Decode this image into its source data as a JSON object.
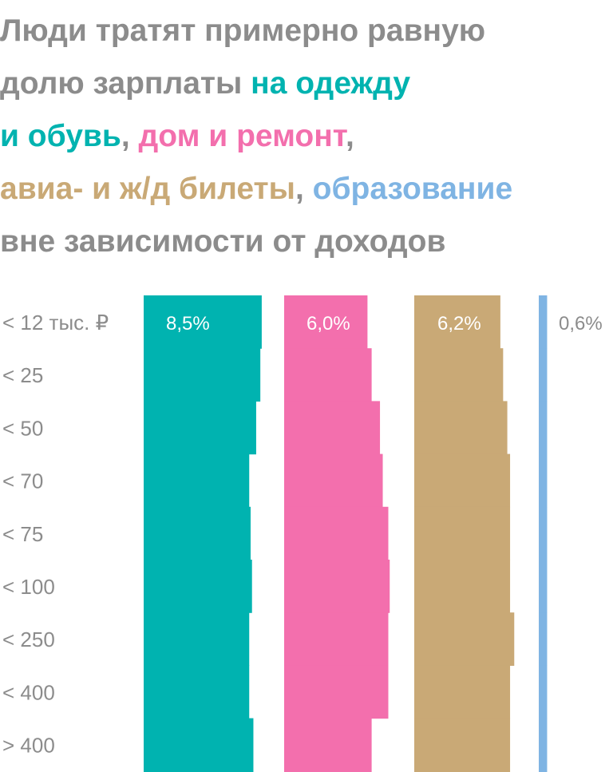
{
  "title": {
    "part1": "Люди тратят примерно равную",
    "part2": "долю зарплаты ",
    "clothes": "на одежду",
    "br_clothes": "и обувь",
    "comma1": ", ",
    "home": "дом и ремонт",
    "comma2": ",",
    "travel": "авиа- и ж/д билеты",
    "comma3": ", ",
    "education": "образование",
    "part3": "вне зависимости от доходов"
  },
  "colors": {
    "clothes": "#00b3b0",
    "home": "#f36fad",
    "travel": "#c9a976",
    "education": "#7fb4e3",
    "text": "#8c8c8c"
  },
  "chart_data": {
    "type": "bar",
    "orientation": "horizontal-stepped",
    "categories": [
      "< 12 тыс. ₽",
      "< 25",
      "< 50",
      "< 70",
      "< 75",
      "< 100",
      "< 250",
      "< 400",
      "> 400"
    ],
    "series": [
      {
        "name": "на одежду и обувь",
        "label": "8,5%",
        "values": [
          8.5,
          8.4,
          8.1,
          7.6,
          7.7,
          7.8,
          7.6,
          7.6,
          7.9
        ],
        "color_key": "clothes"
      },
      {
        "name": "дом и ремонт",
        "label": "6,0%",
        "values": [
          6.0,
          6.3,
          6.9,
          7.1,
          7.5,
          7.6,
          7.5,
          7.5,
          6.3
        ],
        "color_key": "home"
      },
      {
        "name": "авиа- и ж/д билеты",
        "label": "6,2%",
        "values": [
          6.2,
          6.4,
          6.7,
          6.9,
          6.9,
          6.9,
          7.2,
          6.9,
          6.9
        ],
        "color_key": "travel"
      },
      {
        "name": "образование",
        "label": "0,6%",
        "values": [
          0.6,
          0.6,
          0.6,
          0.6,
          0.6,
          0.6,
          0.6,
          0.6,
          0.6
        ],
        "color_key": "education"
      }
    ]
  }
}
